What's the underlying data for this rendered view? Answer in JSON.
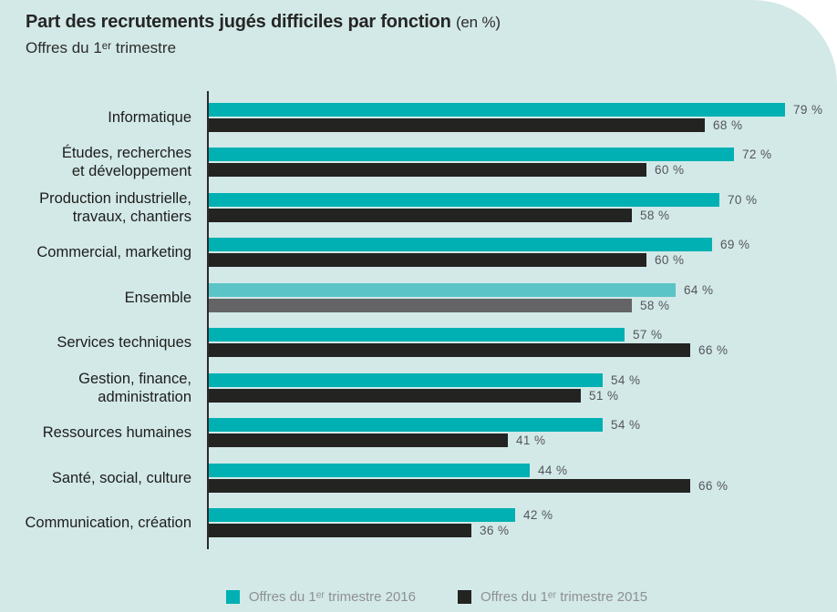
{
  "header": {
    "title": "Part des recrutements jugés difficiles par fonction",
    "title_suffix": "(en %)",
    "subtitle": "Offres du 1ᵉʳ trimestre"
  },
  "chart_data": {
    "type": "bar",
    "orientation": "horizontal",
    "unit": "%",
    "xlim": [
      0,
      86
    ],
    "grid": false,
    "legend_position": "bottom",
    "categories": [
      "Informatique",
      "Études, recherches\net développement",
      "Production industrielle,\ntravaux, chantiers",
      "Commercial, marketing",
      "Ensemble",
      "Services techniques",
      "Gestion, finance,\nadministration",
      "Ressources humaines",
      "Santé, social, culture",
      "Communication, création"
    ],
    "muted_category": "Ensemble",
    "series": [
      {
        "name": "Offres du 1ᵉʳ trimestre 2016",
        "color": "#00b0b2",
        "muted_color": "#5ac4c6",
        "values": [
          79,
          72,
          70,
          69,
          64,
          57,
          54,
          54,
          44,
          42
        ]
      },
      {
        "name": "Offres du 1ᵉʳ trimestre 2015",
        "color": "#232321",
        "muted_color": "#646467",
        "values": [
          68,
          60,
          58,
          60,
          58,
          66,
          51,
          41,
          66,
          36
        ]
      }
    ]
  },
  "colors": {
    "background": "#d2e9e8",
    "axis": "#2b2b29",
    "value_label": "#54555a",
    "legend_text": "#8e9090"
  }
}
